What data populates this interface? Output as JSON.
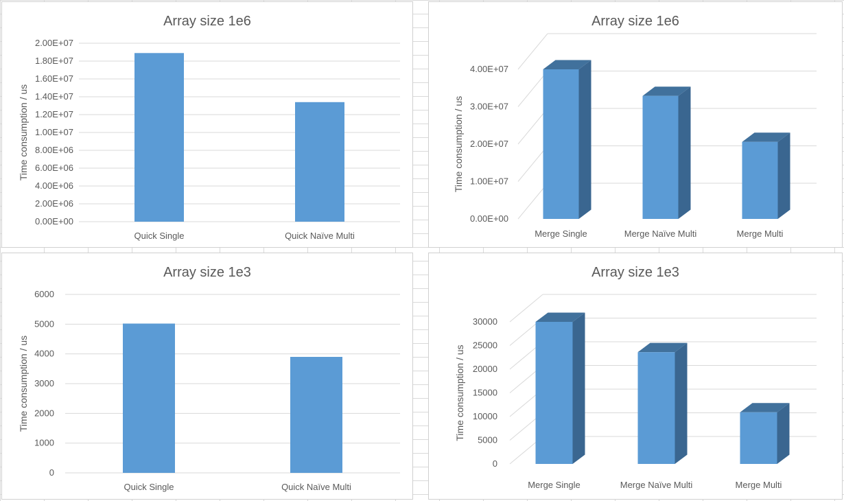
{
  "colors": {
    "bar": "#5b9bd5",
    "bar_top": "#41719c",
    "bar_side": "#3a6690",
    "grid": "#d9d9d9"
  },
  "chart_data": [
    {
      "type": "bar",
      "title": "Array size 1e6",
      "ylabel": "Time consumption / us",
      "categories": [
        "Quick Single",
        "Quick Naïve Multi"
      ],
      "values": [
        18900000,
        13400000
      ],
      "ylim": [
        0,
        20000000
      ],
      "yticks": [
        "0.00E+00",
        "2.00E+06",
        "4.00E+06",
        "6.00E+06",
        "8.00E+06",
        "1.00E+07",
        "1.20E+07",
        "1.40E+07",
        "1.60E+07",
        "1.80E+07",
        "2.00E+07"
      ],
      "grid": true,
      "legend": "none"
    },
    {
      "type": "bar",
      "style": "3d",
      "title": "Array size 1e6",
      "ylabel": "Time consumption / us",
      "categories": [
        "Merge Single",
        "Merge Naïve Multi",
        "Merge Multi"
      ],
      "values": [
        40000000,
        32900000,
        20600000
      ],
      "ylim": [
        0,
        40000000
      ],
      "yticks": [
        "0.00E+00",
        "1.00E+07",
        "2.00E+07",
        "3.00E+07",
        "4.00E+07"
      ],
      "grid": true,
      "legend": "none"
    },
    {
      "type": "bar",
      "title": "Array size 1e3",
      "ylabel": "Time consumption / us",
      "categories": [
        "Quick Single",
        "Quick Naïve Multi"
      ],
      "values": [
        5020,
        3900
      ],
      "ylim": [
        0,
        6000
      ],
      "yticks": [
        "0",
        "1000",
        "2000",
        "3000",
        "4000",
        "5000",
        "6000"
      ],
      "grid": true,
      "legend": "none"
    },
    {
      "type": "bar",
      "style": "3d",
      "title": "Array size 1e3",
      "ylabel": "Time consumption / us",
      "categories": [
        "Merge Single",
        "Merge Naïve Multi",
        "Merge Multi"
      ],
      "values": [
        30000,
        23600,
        10900
      ],
      "ylim": [
        0,
        30000
      ],
      "yticks": [
        "0",
        "5000",
        "10000",
        "15000",
        "20000",
        "25000",
        "30000"
      ],
      "grid": true,
      "legend": "none"
    }
  ]
}
